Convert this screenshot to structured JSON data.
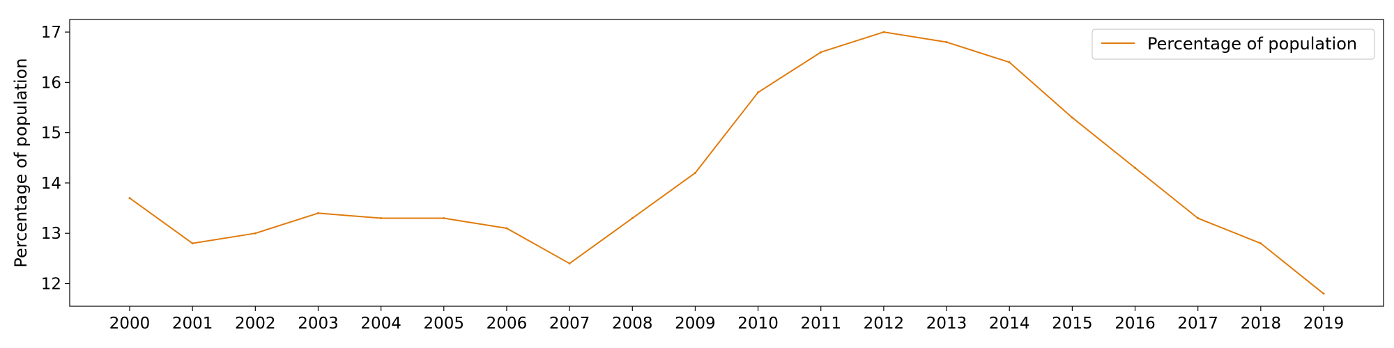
{
  "chart_data": {
    "type": "line",
    "title": "",
    "xlabel": "",
    "ylabel": "Percentage of population",
    "x": [
      "2000",
      "2001",
      "2002",
      "2003",
      "2004",
      "2005",
      "2006",
      "2007",
      "2008",
      "2009",
      "2010",
      "2011",
      "2012",
      "2013",
      "2014",
      "2015",
      "2016",
      "2017",
      "2018",
      "2019"
    ],
    "series": [
      {
        "name": "Percentage of population",
        "color": "#e07b0c",
        "values": [
          13.7,
          12.8,
          13.0,
          13.4,
          13.3,
          13.3,
          13.1,
          12.4,
          13.3,
          14.2,
          15.8,
          16.6,
          17.0,
          16.8,
          16.4,
          15.3,
          14.3,
          13.3,
          12.8,
          11.8
        ]
      }
    ],
    "yticks": [
      12,
      13,
      14,
      15,
      16,
      17
    ],
    "ylim": [
      11.55,
      17.25
    ],
    "grid": false,
    "legend_position": "top-right"
  }
}
